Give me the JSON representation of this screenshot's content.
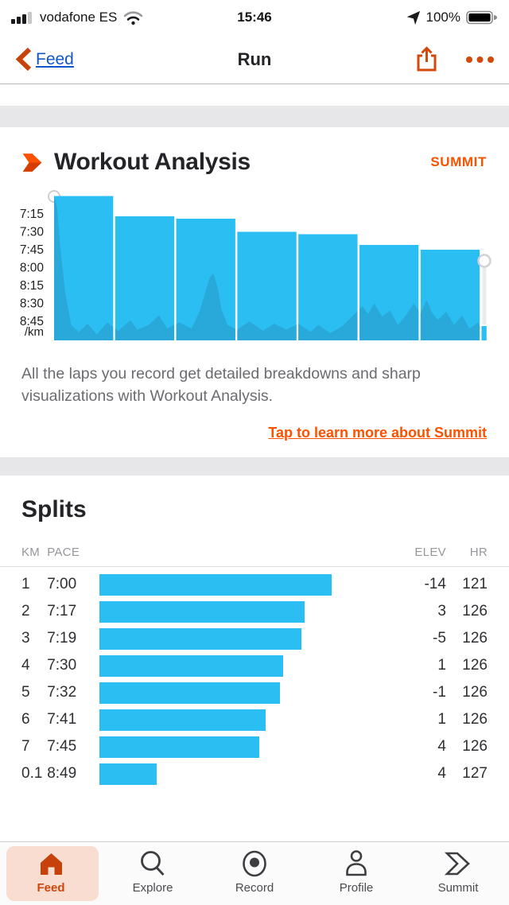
{
  "status_bar": {
    "carrier": "vodafone ES",
    "time": "15:46",
    "battery_percent": "100%"
  },
  "nav": {
    "back_label": "Feed",
    "title": "Run"
  },
  "workout_analysis": {
    "title": "Workout Analysis",
    "badge": "SUMMIT",
    "description": "All the laps you record get detailed breakdowns and sharp visualizations with Workout Analysis.",
    "link_label": "Tap to learn more about Summit"
  },
  "chart_data": {
    "type": "bar",
    "title": "Workout Analysis pace per lap",
    "y_axis": {
      "ticks": [
        "7:15",
        "7:30",
        "7:45",
        "8:00",
        "8:15",
        "8:30",
        "8:45"
      ],
      "unit": "/km",
      "inverted": true,
      "faster_is_taller": true
    },
    "laps": [
      {
        "km": 1,
        "pace": "7:00"
      },
      {
        "km": 1,
        "pace": "7:17"
      },
      {
        "km": 1,
        "pace": "7:19"
      },
      {
        "km": 1,
        "pace": "7:30"
      },
      {
        "km": 1,
        "pace": "7:32"
      },
      {
        "km": 1,
        "pace": "7:41"
      },
      {
        "km": 1,
        "pace": "7:45"
      },
      {
        "km": 0.1,
        "pace": "8:49"
      }
    ],
    "raw_pace_trace_km_sec": [
      [
        0,
        420
      ],
      [
        0.05,
        430
      ],
      [
        0.1,
        462
      ],
      [
        0.18,
        500
      ],
      [
        0.28,
        528
      ],
      [
        0.4,
        534
      ],
      [
        0.55,
        527
      ],
      [
        0.7,
        536
      ],
      [
        0.87,
        526
      ],
      [
        1.05,
        533
      ],
      [
        1.25,
        524
      ],
      [
        1.36,
        532
      ],
      [
        1.55,
        528
      ],
      [
        1.72,
        520
      ],
      [
        1.85,
        531
      ],
      [
        2.05,
        526
      ],
      [
        2.25,
        531
      ],
      [
        2.38,
        517
      ],
      [
        2.48,
        500
      ],
      [
        2.55,
        488
      ],
      [
        2.61,
        485
      ],
      [
        2.68,
        497
      ],
      [
        2.74,
        515
      ],
      [
        2.84,
        528
      ],
      [
        3.0,
        532
      ],
      [
        3.2,
        525
      ],
      [
        3.42,
        533
      ],
      [
        3.6,
        527
      ],
      [
        3.8,
        532
      ],
      [
        4.0,
        527
      ],
      [
        4.2,
        534
      ],
      [
        4.33,
        528
      ],
      [
        4.52,
        535
      ],
      [
        4.72,
        529
      ],
      [
        4.92,
        519
      ],
      [
        5.05,
        512
      ],
      [
        5.14,
        519
      ],
      [
        5.24,
        510
      ],
      [
        5.37,
        521
      ],
      [
        5.5,
        516
      ],
      [
        5.63,
        528
      ],
      [
        5.76,
        520
      ],
      [
        5.89,
        510
      ],
      [
        6.0,
        518
      ],
      [
        6.1,
        507
      ],
      [
        6.18,
        517
      ],
      [
        6.28,
        524
      ],
      [
        6.42,
        517
      ],
      [
        6.55,
        528
      ],
      [
        6.68,
        520
      ],
      [
        6.8,
        531
      ],
      [
        6.94,
        526
      ],
      [
        7.0,
        532
      ],
      [
        7.1,
        536
      ]
    ],
    "colors": {
      "bar": "#2bbef2",
      "trace": "#29a9d9"
    }
  },
  "splits": {
    "title": "Splits",
    "columns": [
      "KM",
      "PACE",
      "ELEV",
      "HR"
    ],
    "rows": [
      {
        "km": "1",
        "pace": "7:00",
        "elev": "-14",
        "hr": "121"
      },
      {
        "km": "2",
        "pace": "7:17",
        "elev": "3",
        "hr": "126"
      },
      {
        "km": "3",
        "pace": "7:19",
        "elev": "-5",
        "hr": "126"
      },
      {
        "km": "4",
        "pace": "7:30",
        "elev": "1",
        "hr": "126"
      },
      {
        "km": "5",
        "pace": "7:32",
        "elev": "-1",
        "hr": "126"
      },
      {
        "km": "6",
        "pace": "7:41",
        "elev": "1",
        "hr": "126"
      },
      {
        "km": "7",
        "pace": "7:45",
        "elev": "4",
        "hr": "126"
      },
      {
        "km": "0.1",
        "pace": "8:49",
        "elev": "4",
        "hr": "127"
      }
    ]
  },
  "tab_bar": {
    "items": [
      {
        "label": "Feed",
        "active": true
      },
      {
        "label": "Explore",
        "active": false
      },
      {
        "label": "Record",
        "active": false
      },
      {
        "label": "Profile",
        "active": false
      },
      {
        "label": "Summit",
        "active": false
      }
    ]
  },
  "colors": {
    "brand_orange": "#fc5200",
    "deep_orange": "#cc4508",
    "link_blue": "#1155cc",
    "chart_blue": "#2bbef2"
  }
}
